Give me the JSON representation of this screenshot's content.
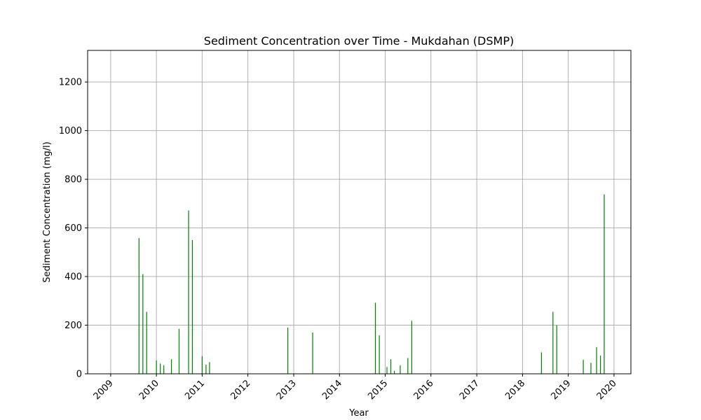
{
  "chart_data": {
    "type": "bar",
    "title": "Sediment Concentration over Time - Mukdahan (DSMP)",
    "xlabel": "Year",
    "ylabel": "Sediment Concentration (mg/l)",
    "xlim": [
      "2008-07-01",
      "2020-05-15"
    ],
    "ylim": [
      0,
      1330
    ],
    "x_ticks": [
      "2009",
      "2010",
      "2011",
      "2012",
      "2013",
      "2014",
      "2015",
      "2016",
      "2017",
      "2018",
      "2019",
      "2020"
    ],
    "y_ticks": [
      0,
      200,
      400,
      600,
      800,
      1000,
      1200
    ],
    "grid": true,
    "colors": {
      "bars": "#008000",
      "grid": "#b0b0b0"
    },
    "series": [
      {
        "x": [
          "2009-08-15",
          "2009-09-15",
          "2009-10-15",
          "2010-01-01",
          "2010-02-01",
          "2010-03-01",
          "2010-05-01",
          "2010-07-01",
          "2010-09-15",
          "2010-10-15",
          "2011-01-01",
          "2011-02-01",
          "2011-03-01",
          "2012-11-15",
          "2013-06-01",
          "2014-10-15",
          "2014-11-15",
          "2015-01-15",
          "2015-02-15",
          "2015-03-15",
          "2015-05-01",
          "2015-07-01",
          "2015-08-01",
          "2018-06-01",
          "2018-09-01",
          "2018-10-01",
          "2019-05-01",
          "2019-07-01",
          "2019-08-15",
          "2019-09-15",
          "2019-10-15"
        ],
        "values": [
          558,
          410,
          255,
          55,
          42,
          35,
          60,
          185,
          672,
          550,
          72,
          38,
          48,
          190,
          170,
          292,
          158,
          28,
          60,
          12,
          35,
          65,
          218,
          88,
          255,
          200,
          58,
          45,
          110,
          75,
          738
        ]
      }
    ]
  }
}
